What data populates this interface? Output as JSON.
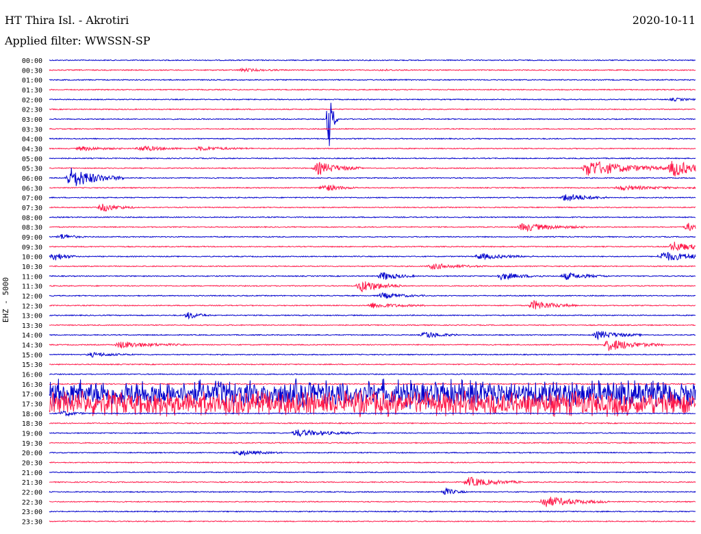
{
  "header": {
    "station": "HT Thira Isl. - Akrotiri",
    "date": "2020-10-11",
    "filter": "Applied filter: WWSSN-SP"
  },
  "chart_data": {
    "type": "line",
    "title": "HT Thira Isl. - Akrotiri",
    "ylabel": "EHZ - 5000",
    "row_labels": [
      "00:00",
      "00:30",
      "01:00",
      "01:30",
      "02:00",
      "02:30",
      "03:00",
      "03:30",
      "04:00",
      "04:30",
      "05:00",
      "05:30",
      "06:00",
      "06:30",
      "07:00",
      "07:30",
      "08:00",
      "08:30",
      "09:00",
      "09:30",
      "10:00",
      "10:30",
      "11:00",
      "11:30",
      "12:00",
      "12:30",
      "13:00",
      "13:30",
      "14:00",
      "14:30",
      "15:00",
      "15:30",
      "16:00",
      "16:30",
      "17:00",
      "17:30",
      "18:00",
      "18:30",
      "19:00",
      "19:30",
      "20:00",
      "20:30",
      "21:00",
      "21:30",
      "22:00",
      "22:30",
      "23:00",
      "23:30"
    ],
    "colors": {
      "even_rows": "#0000cc",
      "odd_rows": "#ff1a4a"
    },
    "minutes_per_row": 30,
    "events": [
      {
        "row": 1,
        "minute": 9,
        "amp": 2,
        "dur": 2
      },
      {
        "row": 1,
        "minute": 15.5,
        "amp": 1,
        "dur": 1
      },
      {
        "row": 4,
        "minute": 29,
        "amp": 2,
        "dur": 1.5
      },
      {
        "row": 6,
        "minute": 13,
        "amp": 40,
        "dur": 0.4,
        "spike": true
      },
      {
        "row": 9,
        "minute": 1.5,
        "amp": 3,
        "dur": 2
      },
      {
        "row": 9,
        "minute": 4.3,
        "amp": 4,
        "dur": 2
      },
      {
        "row": 9,
        "minute": 7,
        "amp": 3,
        "dur": 2.5
      },
      {
        "row": 11,
        "minute": 12.5,
        "amp": 9,
        "dur": 2
      },
      {
        "row": 11,
        "minute": 25,
        "amp": 12,
        "dur": 4
      },
      {
        "row": 11,
        "minute": 29,
        "amp": 13,
        "dur": 2
      },
      {
        "row": 12,
        "minute": 1,
        "amp": 15,
        "dur": 2.5
      },
      {
        "row": 13,
        "minute": 12.8,
        "amp": 5,
        "dur": 1.5
      },
      {
        "row": 13,
        "minute": 26.5,
        "amp": 3,
        "dur": 4
      },
      {
        "row": 14,
        "minute": 24,
        "amp": 6,
        "dur": 2
      },
      {
        "row": 15,
        "minute": 2.5,
        "amp": 6,
        "dur": 1.5
      },
      {
        "row": 17,
        "minute": 22,
        "amp": 6,
        "dur": 3
      },
      {
        "row": 17,
        "minute": 29.7,
        "amp": 6,
        "dur": 0.8
      },
      {
        "row": 18,
        "minute": 0.6,
        "amp": 4,
        "dur": 1
      },
      {
        "row": 19,
        "minute": 29,
        "amp": 7,
        "dur": 2
      },
      {
        "row": 20,
        "minute": 0.3,
        "amp": 6,
        "dur": 1
      },
      {
        "row": 20,
        "minute": 20,
        "amp": 4,
        "dur": 2.5
      },
      {
        "row": 20,
        "minute": 28.5,
        "amp": 7,
        "dur": 3
      },
      {
        "row": 21,
        "minute": 17.8,
        "amp": 4,
        "dur": 2.5
      },
      {
        "row": 22,
        "minute": 15.5,
        "amp": 6,
        "dur": 1.5
      },
      {
        "row": 22,
        "minute": 21,
        "amp": 5,
        "dur": 2
      },
      {
        "row": 22,
        "minute": 24,
        "amp": 5,
        "dur": 2
      },
      {
        "row": 23,
        "minute": 14.5,
        "amp": 9,
        "dur": 2
      },
      {
        "row": 24,
        "minute": 15.5,
        "amp": 4,
        "dur": 2
      },
      {
        "row": 25,
        "minute": 15,
        "amp": 4,
        "dur": 2.5
      },
      {
        "row": 25,
        "minute": 22.5,
        "amp": 7,
        "dur": 2
      },
      {
        "row": 26,
        "minute": 6.5,
        "amp": 5,
        "dur": 1
      },
      {
        "row": 28,
        "minute": 17.5,
        "amp": 5,
        "dur": 1.5
      },
      {
        "row": 28,
        "minute": 25.5,
        "amp": 6,
        "dur": 2
      },
      {
        "row": 29,
        "minute": 3.3,
        "amp": 5,
        "dur": 3
      },
      {
        "row": 29,
        "minute": 26,
        "amp": 9,
        "dur": 2.5
      },
      {
        "row": 30,
        "minute": 2,
        "amp": 3,
        "dur": 2
      },
      {
        "row": 34,
        "minute": 0,
        "amp": 22,
        "dur": 30,
        "noise": true
      },
      {
        "row": 35,
        "minute": 0,
        "amp": 20,
        "dur": 30,
        "noise": true
      },
      {
        "row": 36,
        "minute": 0.7,
        "amp": 4,
        "dur": 1
      },
      {
        "row": 38,
        "minute": 11.5,
        "amp": 5,
        "dur": 3
      },
      {
        "row": 40,
        "minute": 8.8,
        "amp": 4,
        "dur": 2
      },
      {
        "row": 43,
        "minute": 19.5,
        "amp": 7,
        "dur": 2.5
      },
      {
        "row": 44,
        "minute": 18.4,
        "amp": 5,
        "dur": 1
      },
      {
        "row": 45,
        "minute": 23,
        "amp": 8,
        "dur": 3
      }
    ]
  }
}
